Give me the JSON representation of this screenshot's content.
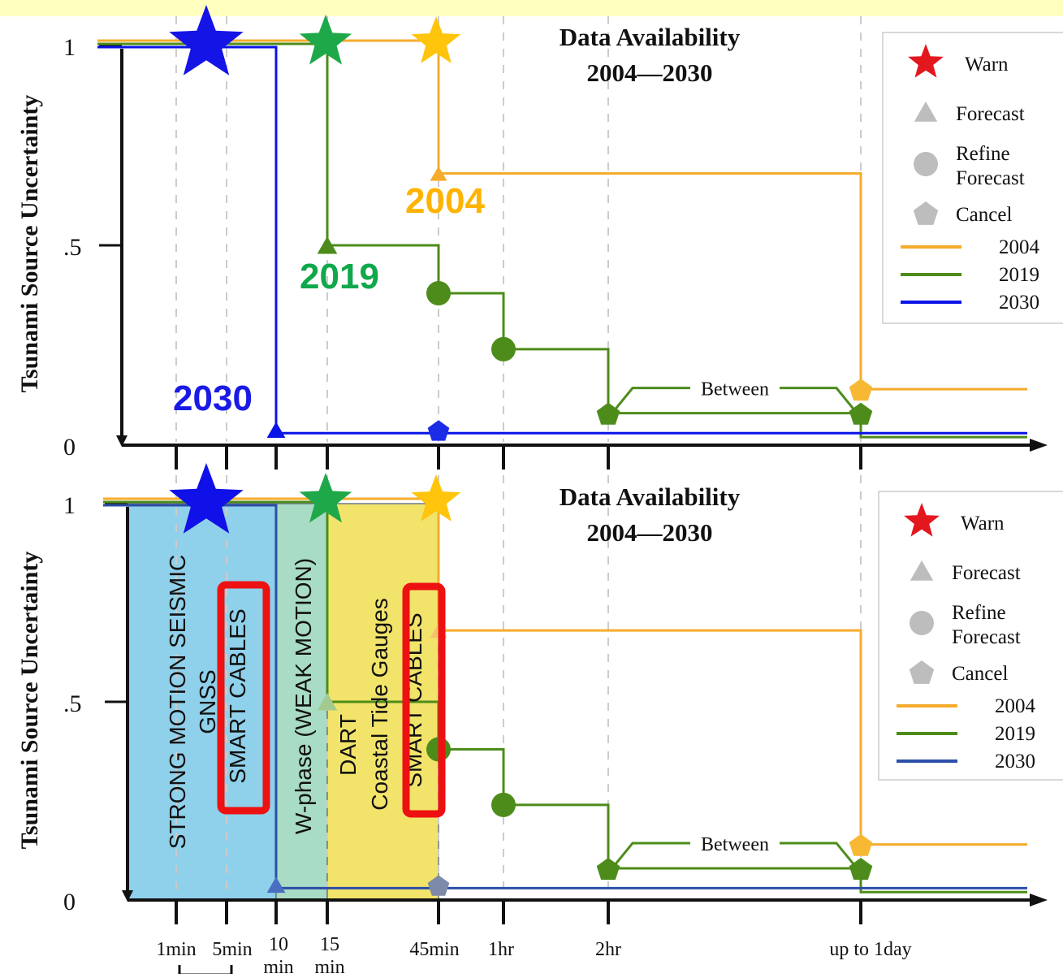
{
  "chart_data": [
    {
      "type": "line",
      "panel": "top",
      "title": "Data Availability",
      "subtitle": "2004—2030",
      "ylabel": "Tsunami Source Uncertainty",
      "ylim": [
        0,
        1
      ],
      "yticks": [
        "0",
        ".5",
        "1"
      ],
      "x_categories": [
        "1min",
        "5min",
        "10 min",
        "15 min",
        "45min",
        "1hr",
        "2hr",
        "up to 1day"
      ],
      "legend": {
        "position": "top-right",
        "markers": [
          {
            "label": "Warn",
            "shape": "star",
            "color": "#e3171e"
          },
          {
            "label": "Forecast",
            "shape": "triangle",
            "color": "#bdbdbd"
          },
          {
            "label": "Refine Forecast",
            "shape": "circle",
            "color": "#bdbdbd"
          },
          {
            "label": "Cancel",
            "shape": "pentagon",
            "color": "#bdbdbd"
          }
        ],
        "lines": [
          {
            "label": "2004",
            "color": "#f5ac2c"
          },
          {
            "label": "2019",
            "color": "#4d8c1a"
          },
          {
            "label": "2030",
            "color": "#0a14e6"
          }
        ]
      },
      "series": [
        {
          "name": "2004",
          "color": "#f5ac2c",
          "steps": [
            {
              "x": "45min",
              "y": 1.0,
              "event": "warn"
            },
            {
              "x": "45min",
              "y": 0.68,
              "event": "forecast"
            },
            {
              "x": "up to 1day",
              "y": 0.14,
              "event": "cancel"
            }
          ]
        },
        {
          "name": "2019",
          "color": "#4d8c1a",
          "steps": [
            {
              "x": "15 min",
              "y": 1.0,
              "event": "warn"
            },
            {
              "x": "15 min",
              "y": 0.5,
              "event": "forecast"
            },
            {
              "x": "45min",
              "y": 0.38,
              "event": "refine"
            },
            {
              "x": "1hr",
              "y": 0.24,
              "event": "refine"
            },
            {
              "x": "2hr",
              "y": 0.08,
              "event": "cancel"
            },
            {
              "x": "up to 1day",
              "y": 0.08,
              "event": "cancel"
            }
          ]
        },
        {
          "name": "2030",
          "color": "#0a14e6",
          "steps": [
            {
              "x": "1min-5min",
              "y": 1.0,
              "event": "warn"
            },
            {
              "x": "10 min",
              "y": 0.03,
              "event": "forecast"
            },
            {
              "x": "45min",
              "y": 0.03,
              "event": "cancel"
            }
          ]
        }
      ],
      "annotations": [
        {
          "text": "Between",
          "from": "2hr",
          "to": "up to 1day"
        },
        {
          "text": "2004",
          "color": "#ffb300"
        },
        {
          "text": "2019",
          "color": "#0fa84a"
        },
        {
          "text": "2030",
          "color": "#1a1ae6"
        }
      ]
    },
    {
      "type": "line",
      "panel": "bottom",
      "title": "Data Availability",
      "subtitle": "2004—2030",
      "ylabel": "Tsunami Source Uncertainty",
      "ylim": [
        0,
        1
      ],
      "yticks": [
        "0",
        ".5",
        "1"
      ],
      "x_categories": [
        "1min",
        "5min",
        "10 min",
        "15 min",
        "45min",
        "1hr",
        "2hr",
        "up to 1day"
      ],
      "legend": {
        "position": "top-right",
        "markers": [
          {
            "label": "Warn",
            "shape": "star",
            "color": "#e3171e"
          },
          {
            "label": "Forecast",
            "shape": "triangle",
            "color": "#bdbdbd"
          },
          {
            "label": "Refine Forecast",
            "shape": "circle",
            "color": "#bdbdbd"
          },
          {
            "label": "Cancel",
            "shape": "pentagon",
            "color": "#bdbdbd"
          }
        ],
        "lines": [
          {
            "label": "2004",
            "color": "#f5ac2c"
          },
          {
            "label": "2019",
            "color": "#4d8c1a"
          },
          {
            "label": "2030",
            "color": "#2b4ea8"
          }
        ]
      },
      "shaded_regions": [
        {
          "from": "start",
          "to": "10 min",
          "color": "#8fd0ea",
          "lines": [
            "STRONG MOTION SEISMIC",
            "GNSS",
            "SMART CABLES"
          ]
        },
        {
          "from": "10 min",
          "to": "15 min",
          "color": "#a8dcc4",
          "lines": [
            "W-phase (WEAK MOTION)"
          ]
        },
        {
          "from": "15 min",
          "to": "45min",
          "color": "#f2e46a",
          "lines": [
            "DART",
            "Coastal Tide Gauges",
            "SMART CABLES"
          ]
        }
      ],
      "annotations": [
        {
          "text": "Between",
          "from": "2hr",
          "to": "up to 1day"
        }
      ]
    }
  ]
}
